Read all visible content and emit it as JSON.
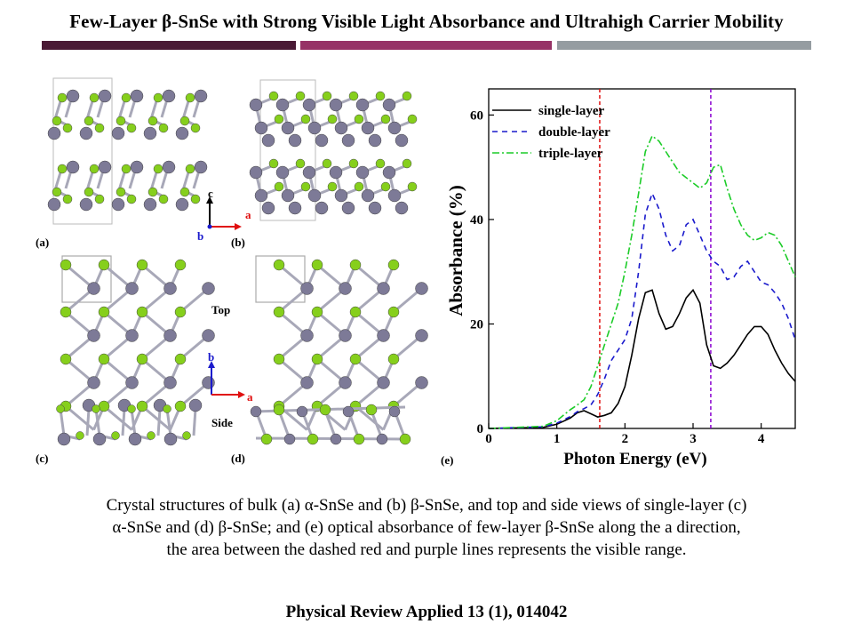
{
  "header": {
    "title": "Few-Layer β-SnSe with Strong Visible Light Absorbance and Ultrahigh Carrier Mobility",
    "bar_colors": [
      "#4a1a35",
      "#963266",
      "#959ca1"
    ]
  },
  "figure": {
    "panel_labels": [
      "(a)",
      "(b)",
      "(c)",
      "(d)",
      "(e)"
    ],
    "axis_labels": {
      "c": "c",
      "a": "a",
      "b": "b"
    },
    "view_labels": {
      "top": "Top",
      "side": "Side"
    },
    "atom_colors": {
      "sn": "#7d7a97",
      "se": "#86cf1c"
    }
  },
  "chart_data": {
    "type": "line",
    "xlabel": "Photon Energy (eV)",
    "ylabel": "Absorbance (%)",
    "xlim": [
      0,
      4.5
    ],
    "ylim": [
      0,
      65
    ],
    "xticks": [
      0,
      1,
      2,
      3,
      4
    ],
    "yticks": [
      0,
      20,
      40,
      60
    ],
    "vlines": [
      {
        "x": 1.63,
        "color": "#e01010"
      },
      {
        "x": 3.26,
        "color": "#8a00d0"
      }
    ],
    "legend_position": "top-left",
    "series": [
      {
        "name": "single-layer",
        "color": "#000000",
        "dash": "none",
        "x": [
          0,
          0.8,
          1.0,
          1.2,
          1.3,
          1.4,
          1.5,
          1.6,
          1.7,
          1.8,
          1.9,
          2.0,
          2.1,
          2.2,
          2.3,
          2.4,
          2.5,
          2.6,
          2.7,
          2.8,
          2.9,
          3.0,
          3.1,
          3.2,
          3.3,
          3.4,
          3.5,
          3.6,
          3.7,
          3.8,
          3.9,
          4.0,
          4.1,
          4.2,
          4.3,
          4.4,
          4.5
        ],
        "y": [
          0,
          0.2,
          0.8,
          2.0,
          3.0,
          3.4,
          2.8,
          2.2,
          2.5,
          3.0,
          4.8,
          8.0,
          14,
          21,
          26,
          26.5,
          22,
          19,
          19.5,
          22,
          25,
          26.5,
          24,
          16,
          12,
          11.5,
          12.5,
          14,
          16,
          18,
          19.5,
          19.5,
          18,
          15,
          12.5,
          10.5,
          9
        ]
      },
      {
        "name": "double-layer",
        "color": "#1a1acc",
        "dash": "6,5",
        "x": [
          0,
          0.8,
          1.0,
          1.2,
          1.3,
          1.4,
          1.5,
          1.6,
          1.7,
          1.8,
          1.9,
          2.0,
          2.1,
          2.2,
          2.3,
          2.4,
          2.5,
          2.6,
          2.7,
          2.8,
          2.9,
          3.0,
          3.1,
          3.2,
          3.3,
          3.4,
          3.5,
          3.6,
          3.7,
          3.8,
          3.9,
          4.0,
          4.1,
          4.2,
          4.3,
          4.4,
          4.5
        ],
        "y": [
          0,
          0.3,
          1.0,
          2.3,
          3.2,
          3.8,
          4.5,
          6.5,
          9.5,
          13,
          15,
          17,
          21,
          30,
          41,
          45,
          42,
          37,
          34,
          35,
          39,
          40,
          37,
          34,
          32,
          31,
          28.5,
          29,
          31,
          32,
          30,
          28,
          27.5,
          26,
          24,
          21,
          17
        ]
      },
      {
        "name": "triple-layer",
        "color": "#1ccc28",
        "dash": "8,3,2,3",
        "x": [
          0,
          0.8,
          1.0,
          1.2,
          1.3,
          1.4,
          1.5,
          1.6,
          1.7,
          1.8,
          1.9,
          2.0,
          2.1,
          2.2,
          2.3,
          2.4,
          2.5,
          2.6,
          2.7,
          2.8,
          2.9,
          3.0,
          3.1,
          3.2,
          3.3,
          3.4,
          3.5,
          3.6,
          3.7,
          3.8,
          3.9,
          4.0,
          4.1,
          4.2,
          4.3,
          4.4,
          4.5
        ],
        "y": [
          0,
          0.4,
          1.5,
          3.6,
          4.5,
          5.5,
          8.0,
          12,
          16,
          20,
          24,
          30,
          37,
          45,
          53,
          56,
          55,
          53,
          51,
          49,
          48,
          47,
          46,
          47,
          50,
          50.5,
          46,
          42,
          39,
          37,
          36,
          36.5,
          37.5,
          37,
          35,
          32,
          29
        ]
      }
    ]
  },
  "caption": {
    "line1": "Crystal structures of bulk (a) α-SnSe and (b) β-SnSe,  and top and side views of single-layer  (c)",
    "line2": "α-SnSe and (d) β-SnSe;  and (e) optical absorbance of few-layer β-SnSe  along the a direction,",
    "line3": "the area between the dashed red and purple lines represents the visible range."
  },
  "reference": "Physical Review Applied 13 (1), 014042"
}
